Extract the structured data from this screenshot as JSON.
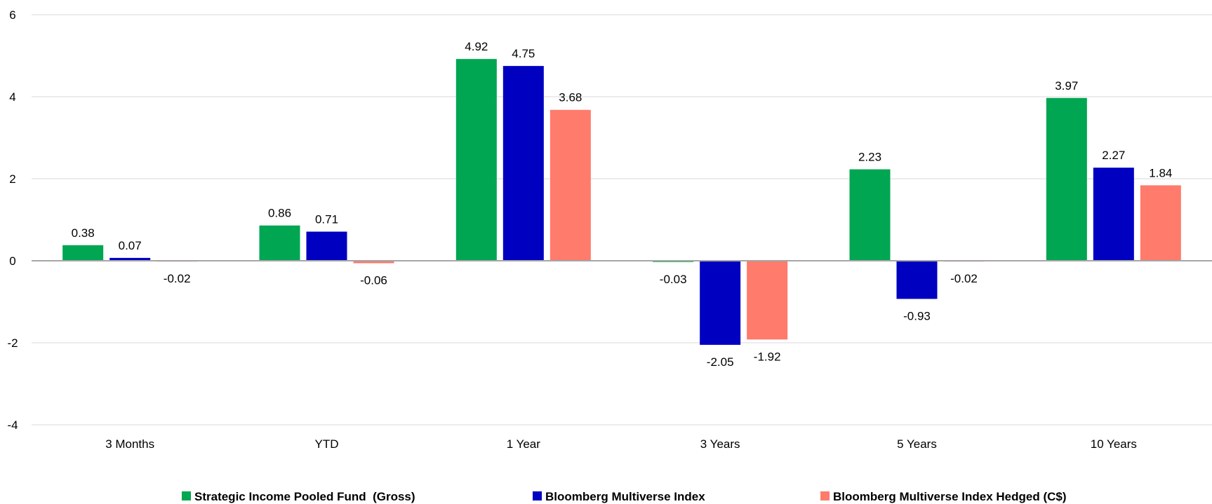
{
  "chart_data": {
    "type": "bar",
    "categories": [
      "3 Months",
      "YTD",
      "1 Year",
      "3 Years",
      "5 Years",
      "10 Years"
    ],
    "series": [
      {
        "name": "Strategic Income Pooled Fund  (Gross)",
        "color": "#00A651",
        "values": [
          0.38,
          0.86,
          4.92,
          -0.03,
          2.23,
          3.97
        ],
        "labels": [
          "0.38",
          "0.86",
          "4.92",
          "-0.03",
          "2.23",
          "3.97"
        ]
      },
      {
        "name": "Bloomberg Multiverse Index",
        "color": "#0000C0",
        "values": [
          0.07,
          0.71,
          4.75,
          -2.05,
          -0.93,
          2.27
        ],
        "labels": [
          "0.07",
          "0.71",
          "4.75",
          "-2.05",
          "-0.93",
          "2.27"
        ]
      },
      {
        "name": "Bloomberg Multiverse Index Hedged (C$)",
        "color": "#FF7B6B",
        "values": [
          -0.02,
          -0.06,
          3.68,
          -1.92,
          -0.02,
          1.84
        ],
        "labels": [
          "-0.02",
          "-0.06",
          "3.68",
          "-1.92",
          "-0.02",
          "1.84"
        ]
      }
    ],
    "yticks": [
      6,
      4,
      2,
      0,
      -2,
      -4
    ],
    "ylim": [
      -4,
      6
    ],
    "grid": true,
    "legend": "bottom",
    "title": "",
    "xlabel": "",
    "ylabel": ""
  }
}
